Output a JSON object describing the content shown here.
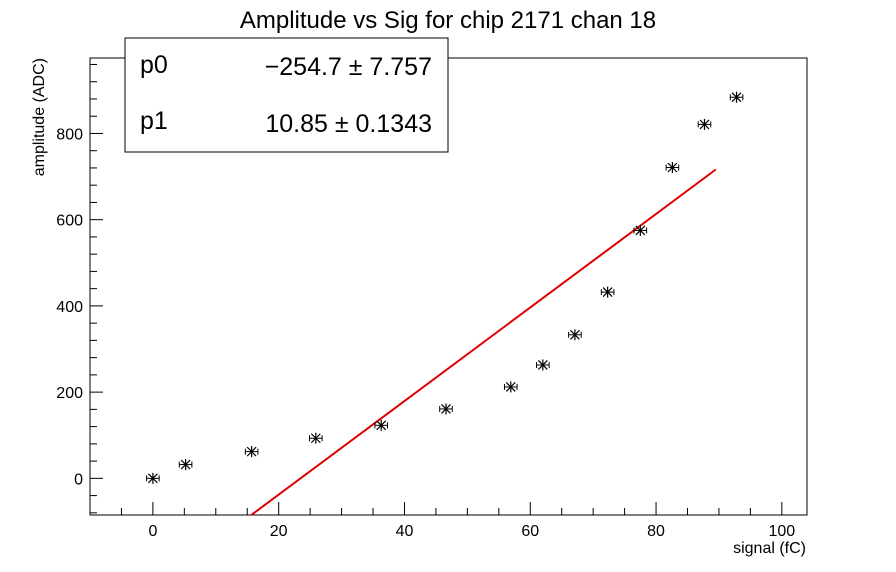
{
  "chart_data": {
    "type": "scatter",
    "title": "Amplitude vs Sig for chip 2171 chan 18",
    "xlabel": "signal (fC)",
    "ylabel": "amplitude (ADC)",
    "xlim": [
      -10,
      104
    ],
    "ylim": [
      -85,
      975
    ],
    "x_ticks": [
      0,
      20,
      40,
      60,
      80,
      100
    ],
    "y_ticks": [
      0,
      200,
      400,
      600,
      800
    ],
    "grid": false,
    "series": [
      {
        "marker": "asterisk-with-x-errorbars",
        "color": "#000000",
        "points": [
          {
            "x": 0,
            "y": 0
          },
          {
            "x": 5.2,
            "y": 32
          },
          {
            "x": 15.7,
            "y": 62
          },
          {
            "x": 25.9,
            "y": 93
          },
          {
            "x": 36.3,
            "y": 123
          },
          {
            "x": 46.6,
            "y": 161
          },
          {
            "x": 56.9,
            "y": 212
          },
          {
            "x": 62.0,
            "y": 263
          },
          {
            "x": 67.1,
            "y": 333
          },
          {
            "x": 72.3,
            "y": 432
          },
          {
            "x": 77.5,
            "y": 575
          },
          {
            "x": 82.6,
            "y": 721
          },
          {
            "x": 87.7,
            "y": 821
          },
          {
            "x": 92.8,
            "y": 884
          }
        ],
        "x_error": 1.0
      }
    ],
    "fit": {
      "color": "#e00000",
      "x_range": [
        15,
        89.5
      ],
      "p0": -254.7,
      "p1": 10.85
    },
    "stats": [
      {
        "name": "p0",
        "value": "−254.7 ± 7.757"
      },
      {
        "name": "p1",
        "value": "10.85 ± 0.1343"
      }
    ]
  }
}
